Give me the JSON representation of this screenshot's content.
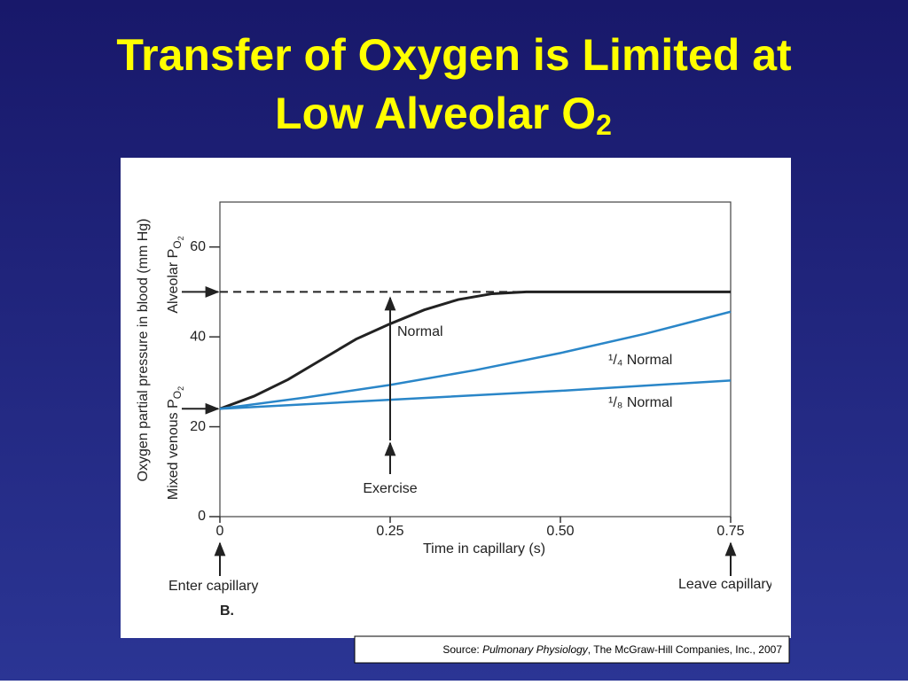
{
  "slide": {
    "title_lines": [
      "Transfer of Oxygen is Limited at",
      "Low Alveolar O"
    ],
    "title_subscript": "2",
    "source_prefix": "Source: ",
    "source_italic": "Pulmonary Physiology",
    "source_suffix": ", The McGraw-Hill Companies, Inc., 2007"
  },
  "chart_data": {
    "type": "line",
    "y_label": "Oxygen partial pressure in blood (mm Hg)",
    "x_label": "Time in capillary (s)",
    "panel_label": "B.",
    "xlim": [
      0,
      0.75
    ],
    "xticks": [
      0,
      0.25,
      {
        "value": 0.5,
        "label": "0.50"
      },
      0.75
    ],
    "ylim": [
      0,
      70
    ],
    "yticks": [
      0,
      20,
      40,
      60
    ],
    "series": [
      {
        "name": "Normal",
        "color": "#222222",
        "x": [
          0,
          0.05,
          0.1,
          0.15,
          0.2,
          0.25,
          0.3,
          0.35,
          0.4,
          0.45,
          0.75
        ],
        "values": [
          24,
          26.8,
          30.5,
          35,
          39.5,
          42.9,
          46,
          48.3,
          49.6,
          50,
          50
        ]
      },
      {
        "name": "¹/₄ Normal",
        "color": "#2a86c8",
        "x": [
          0,
          0.125,
          0.25,
          0.375,
          0.5,
          0.625,
          0.75
        ],
        "values": [
          24,
          26.5,
          29.3,
          32.6,
          36.4,
          40.7,
          45.6
        ]
      },
      {
        "name": "¹/₈ Normal",
        "color": "#2a86c8",
        "x": [
          0,
          0.25,
          0.5,
          0.75
        ],
        "values": [
          24,
          26,
          28,
          30.3
        ]
      }
    ],
    "y_annotations": [
      {
        "text": "Alveolar P",
        "sub": "O",
        "subsub": "2",
        "value": 50
      },
      {
        "text": "Mixed venous P",
        "sub": "O",
        "subsub": "2",
        "value": 24
      }
    ],
    "x_annotations": [
      {
        "text": "Exercise",
        "x": 0.25
      },
      {
        "text": "Enter capillary",
        "x": 0
      },
      {
        "text": "Leave capillary",
        "x": 0.75
      }
    ]
  }
}
